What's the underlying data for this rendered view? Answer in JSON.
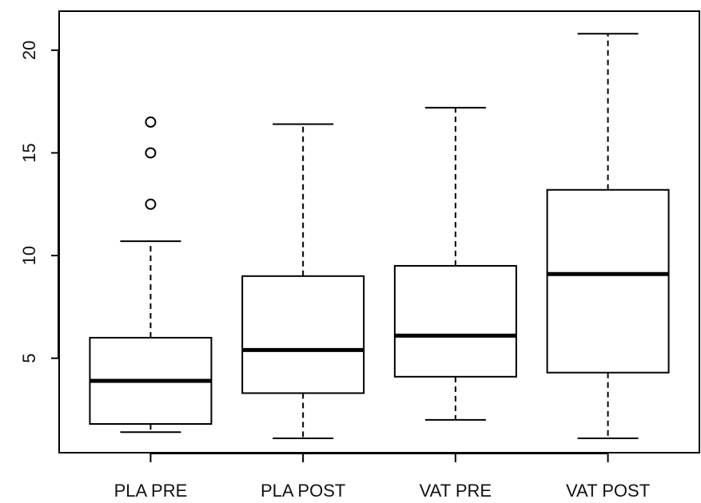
{
  "chart_data": {
    "type": "boxplot",
    "title": "",
    "xlabel": "",
    "ylabel": "",
    "ylim": [
      0.4,
      21.9
    ],
    "y_ticks": [
      5,
      10,
      15,
      20
    ],
    "y_tick_labels": [
      "5",
      "10",
      "15",
      "20"
    ],
    "grid": false,
    "legend": "none",
    "categories": [
      "PLA PRE",
      "PLA POST",
      "VAT PRE",
      "VAT POST"
    ],
    "boxes": [
      {
        "label": "PLA PRE",
        "whisker_low": 1.4,
        "q1": 1.8,
        "median": 3.9,
        "q3": 6.0,
        "whisker_high": 10.7,
        "outliers": [
          12.5,
          15.0,
          16.5
        ]
      },
      {
        "label": "PLA POST",
        "whisker_low": 1.1,
        "q1": 3.3,
        "median": 5.4,
        "q3": 9.0,
        "whisker_high": 16.4,
        "outliers": []
      },
      {
        "label": "VAT PRE",
        "whisker_low": 2.0,
        "q1": 4.1,
        "median": 6.1,
        "q3": 9.5,
        "whisker_high": 17.2,
        "outliers": []
      },
      {
        "label": "VAT POST",
        "whisker_low": 1.1,
        "q1": 4.3,
        "median": 9.1,
        "q3": 13.2,
        "whisker_high": 20.8,
        "outliers": []
      }
    ],
    "colors": {
      "box_fill": "#ffffff",
      "stroke": "#000000"
    }
  }
}
